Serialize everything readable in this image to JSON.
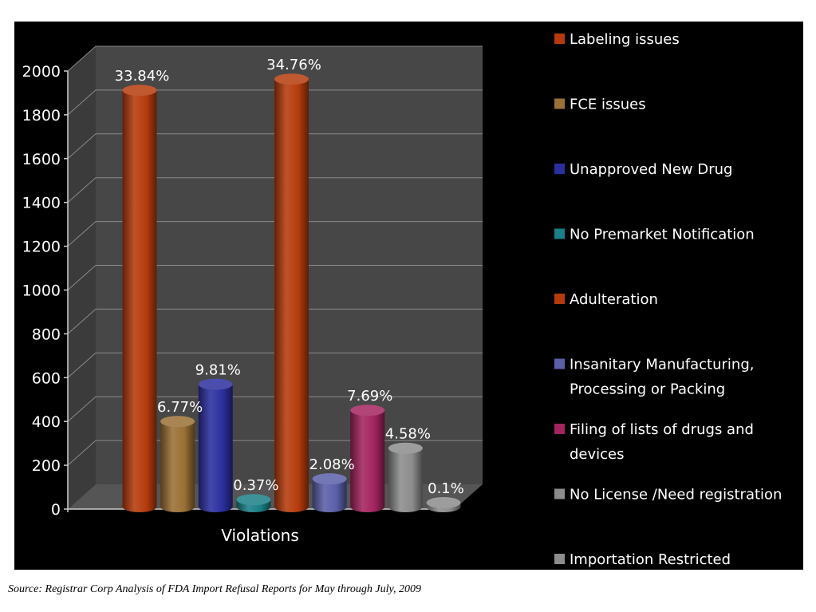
{
  "chart_data": {
    "type": "bar",
    "xlabel": "Violations",
    "ylabel": "",
    "ylim": [
      0,
      2000
    ],
    "yticks": [
      0,
      200,
      400,
      600,
      800,
      1000,
      1200,
      1400,
      1600,
      1800,
      2000
    ],
    "grid": true,
    "legend_position": "right",
    "categories": [
      "Violations"
    ],
    "series": [
      {
        "name": "Labeling issues",
        "values": [
          1890
        ],
        "label": "33.84%",
        "color": "#b53b0c"
      },
      {
        "name": "FCE issues",
        "values": [
          378
        ],
        "label": "6.77%",
        "color": "#9a7035"
      },
      {
        "name": "Unapproved New Drug",
        "values": [
          548
        ],
        "label": "9.81%",
        "color": "#2b2f9e"
      },
      {
        "name": "No Premarket Notification",
        "values": [
          21
        ],
        "label": "0.37%",
        "color": "#1a7f86"
      },
      {
        "name": "Adulteration",
        "values": [
          1941
        ],
        "label": "34.76%",
        "color": "#b53b0c"
      },
      {
        "name": "Insanitary Manufacturing, Processing or Packing",
        "name_lines": [
          "Insanitary Manufacturing,",
          "Processing or Packing"
        ],
        "values": [
          116
        ],
        "label": "2.08%",
        "color": "#5a5fa8"
      },
      {
        "name": "Filing of lists of drugs and devices",
        "name_lines": [
          "Filing of lists of drugs and",
          "devices"
        ],
        "values": [
          429
        ],
        "label": "7.69%",
        "color": "#a3245f"
      },
      {
        "name": "No License /Need registration",
        "values": [
          256
        ],
        "label": "4.58%",
        "color": "#8c8c8c"
      },
      {
        "name": "Importation Restricted",
        "values": [
          6
        ],
        "label": "0.1%",
        "color": "#8c8c8c"
      }
    ]
  },
  "footer": {
    "source": "Source: Registrar Corp Analysis of FDA Import Refusal Reports for May through July, 2009"
  }
}
